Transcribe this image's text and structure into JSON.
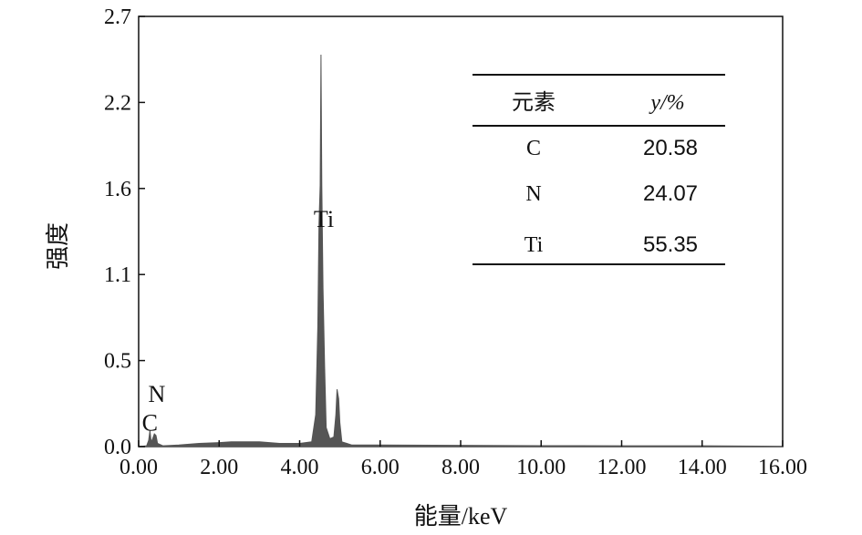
{
  "chart_data": {
    "type": "area",
    "xlabel": "能量/keV",
    "ylabel": "强度",
    "xlim": [
      0,
      16
    ],
    "ylim": [
      0,
      2.7
    ],
    "xticks": [
      "0.00",
      "2.00",
      "4.00",
      "6.00",
      "8.00",
      "10.00",
      "12.00",
      "14.00",
      "16.00"
    ],
    "yticks": [
      "0.0",
      "0.5",
      "1.1",
      "1.6",
      "2.2",
      "2.7"
    ],
    "color": "#555555",
    "grid": false,
    "points": [
      [
        0,
        0
      ],
      [
        0.2,
        0.005
      ],
      [
        0.25,
        0.04
      ],
      [
        0.28,
        0.1
      ],
      [
        0.31,
        0.03
      ],
      [
        0.35,
        0.05
      ],
      [
        0.39,
        0.08
      ],
      [
        0.43,
        0.07
      ],
      [
        0.47,
        0.02
      ],
      [
        0.6,
        0.005
      ],
      [
        1.0,
        0.01
      ],
      [
        1.5,
        0.02
      ],
      [
        2.0,
        0.025
      ],
      [
        2.3,
        0.03
      ],
      [
        2.7,
        0.03
      ],
      [
        3.0,
        0.03
      ],
      [
        3.5,
        0.02
      ],
      [
        4.0,
        0.02
      ],
      [
        4.3,
        0.03
      ],
      [
        4.4,
        0.2
      ],
      [
        4.45,
        0.75
      ],
      [
        4.48,
        1.4
      ],
      [
        4.51,
        1.64
      ],
      [
        4.53,
        2.46
      ],
      [
        4.55,
        1.64
      ],
      [
        4.58,
        1.0
      ],
      [
        4.62,
        0.5
      ],
      [
        4.66,
        0.12
      ],
      [
        4.75,
        0.05
      ],
      [
        4.85,
        0.06
      ],
      [
        4.9,
        0.2
      ],
      [
        4.93,
        0.36
      ],
      [
        4.97,
        0.3
      ],
      [
        5.0,
        0.15
      ],
      [
        5.05,
        0.03
      ],
      [
        5.3,
        0.01
      ],
      [
        6,
        0.01
      ],
      [
        8,
        0.008
      ],
      [
        10,
        0.006
      ],
      [
        12,
        0.005
      ],
      [
        14,
        0.005
      ],
      [
        15.5,
        0.003
      ],
      [
        16,
        0
      ]
    ],
    "annotations": [
      {
        "text": "C",
        "x": 0.28,
        "y": 0.1
      },
      {
        "text": "N",
        "x": 0.45,
        "y": 0.28
      },
      {
        "text": "Ti",
        "x": 4.6,
        "y": 1.38
      }
    ],
    "table": {
      "headers": [
        "元素",
        "y/%"
      ],
      "rows": [
        [
          "C",
          "20.58"
        ],
        [
          "N",
          "24.07"
        ],
        [
          "Ti",
          "55.35"
        ]
      ]
    }
  }
}
